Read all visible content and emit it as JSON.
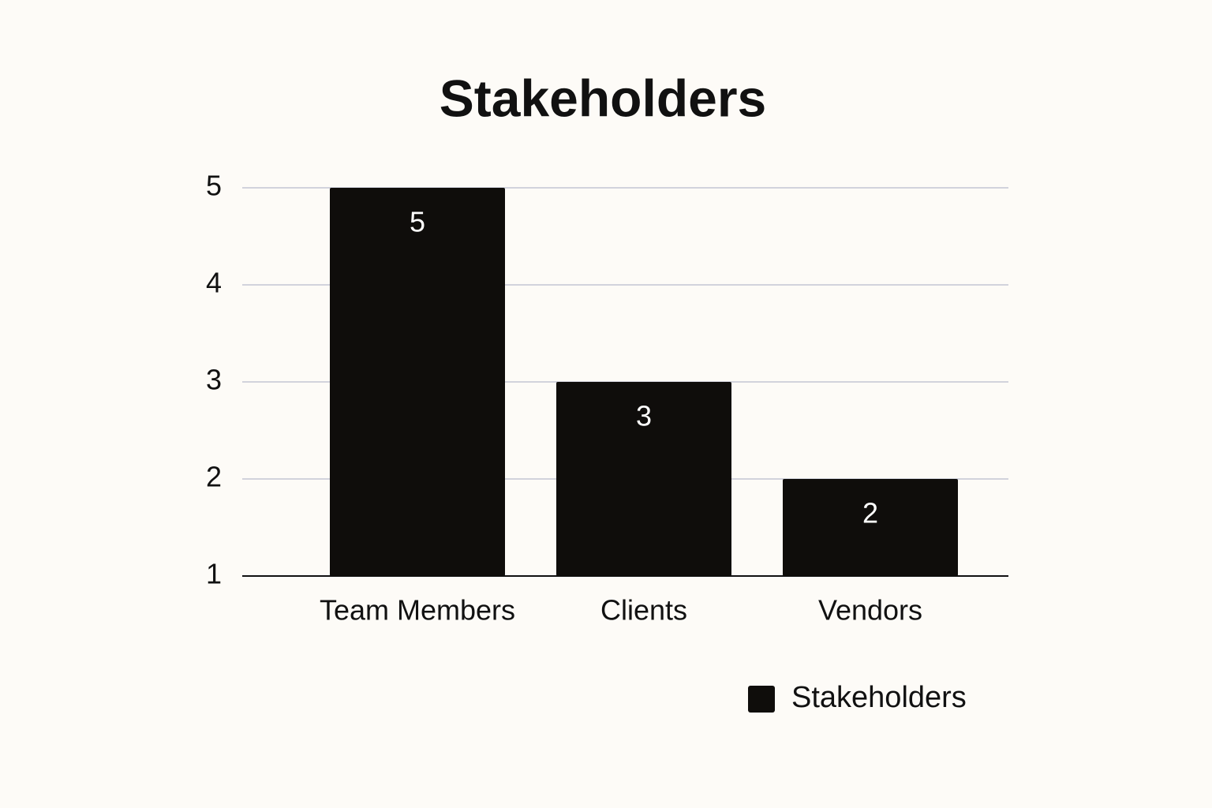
{
  "chart_data": {
    "type": "bar",
    "title": "Stakeholders",
    "categories": [
      "Team Members",
      "Clients",
      "Vendors"
    ],
    "series": [
      {
        "name": "Stakeholders",
        "color": "#0f0d0b",
        "values": [
          5,
          3,
          2
        ]
      }
    ],
    "ylim": [
      1,
      5
    ],
    "yticks": [
      1,
      2,
      3,
      4,
      5
    ],
    "grid": true,
    "legend": "bottom-right"
  }
}
